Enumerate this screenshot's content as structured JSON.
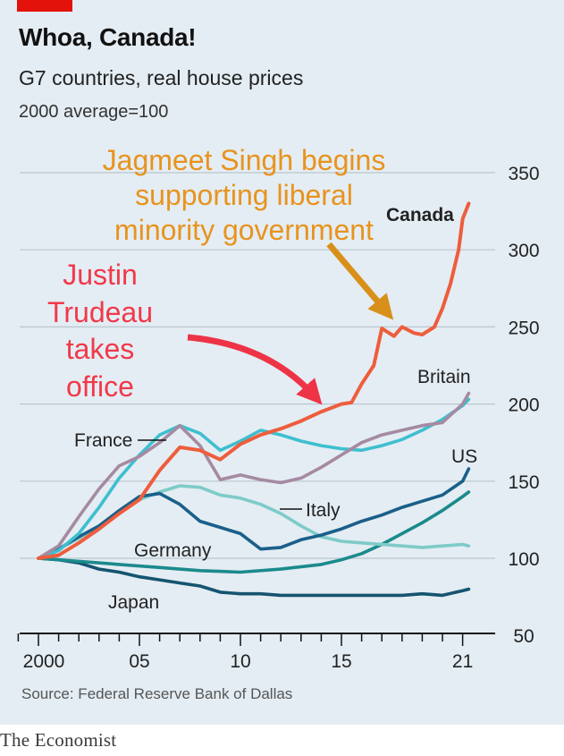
{
  "header": {
    "title": "Whoa, Canada!",
    "subtitle": "G7 countries, real house prices",
    "index_note": "2000 average=100"
  },
  "footer": {
    "source": "Source: Federal Reserve Bank of Dallas",
    "brand": "The Economist"
  },
  "colors": {
    "background": "#e4edf3",
    "red_tag": "#e3120b",
    "annotation_orange": "#e8931e",
    "annotation_red": "#f0394a",
    "arrow_orange": "#d8901a",
    "arrow_red": "#ee3347"
  },
  "annotations": {
    "singh": [
      "Jagmeet Singh begins",
      "supporting liberal",
      "minority government"
    ],
    "trudeau": [
      "Justin",
      "Trudeau",
      "takes",
      "office"
    ]
  },
  "chart_data": {
    "type": "line",
    "title": "Whoa, Canada!",
    "subtitle": "G7 countries, real house prices",
    "ylabel": "2000 average=100",
    "xlabel": "",
    "x_range": [
      1999.8,
      2021.6
    ],
    "ylim": [
      50,
      350
    ],
    "y_ticks": [
      50,
      100,
      150,
      200,
      250,
      300,
      350
    ],
    "x_ticks": [
      {
        "value": 2000,
        "label": "2000"
      },
      {
        "value": 2005,
        "label": "05"
      },
      {
        "value": 2010,
        "label": "10"
      },
      {
        "value": 2015,
        "label": "15"
      },
      {
        "value": 2021,
        "label": "21"
      }
    ],
    "grid": true,
    "series": [
      {
        "name": "Japan",
        "color": "#155470",
        "label": "Japan",
        "points": [
          [
            2000,
            100
          ],
          [
            2001,
            99
          ],
          [
            2002,
            97
          ],
          [
            2003,
            93
          ],
          [
            2004,
            91
          ],
          [
            2005,
            88
          ],
          [
            2006,
            86
          ],
          [
            2007,
            84
          ],
          [
            2008,
            82
          ],
          [
            2009,
            78
          ],
          [
            2010,
            77
          ],
          [
            2011,
            77
          ],
          [
            2012,
            76
          ],
          [
            2013,
            76
          ],
          [
            2014,
            76
          ],
          [
            2015,
            76
          ],
          [
            2016,
            76
          ],
          [
            2017,
            76
          ],
          [
            2018,
            76
          ],
          [
            2019,
            77
          ],
          [
            2020,
            76
          ],
          [
            2021,
            79
          ],
          [
            2021.3,
            80
          ]
        ]
      },
      {
        "name": "Germany",
        "color": "#1b8a8c",
        "label": "Germany",
        "points": [
          [
            2000,
            100
          ],
          [
            2002,
            98
          ],
          [
            2004,
            96
          ],
          [
            2006,
            94
          ],
          [
            2008,
            92
          ],
          [
            2010,
            91
          ],
          [
            2012,
            93
          ],
          [
            2014,
            96
          ],
          [
            2015,
            99
          ],
          [
            2016,
            103
          ],
          [
            2017,
            109
          ],
          [
            2018,
            116
          ],
          [
            2019,
            123
          ],
          [
            2020,
            131
          ],
          [
            2021,
            140
          ],
          [
            2021.3,
            143
          ]
        ]
      },
      {
        "name": "Italy",
        "color": "#7ecbc8",
        "label": "Italy",
        "points": [
          [
            2000,
            100
          ],
          [
            2001,
            106
          ],
          [
            2002,
            113
          ],
          [
            2003,
            121
          ],
          [
            2004,
            130
          ],
          [
            2005,
            138
          ],
          [
            2006,
            143
          ],
          [
            2007,
            147
          ],
          [
            2008,
            146
          ],
          [
            2009,
            141
          ],
          [
            2010,
            139
          ],
          [
            2011,
            135
          ],
          [
            2012,
            129
          ],
          [
            2013,
            121
          ],
          [
            2014,
            114
          ],
          [
            2015,
            111
          ],
          [
            2016,
            110
          ],
          [
            2017,
            109
          ],
          [
            2018,
            108
          ],
          [
            2019,
            107
          ],
          [
            2020,
            108
          ],
          [
            2021,
            109
          ],
          [
            2021.3,
            108
          ]
        ]
      },
      {
        "name": "US",
        "color": "#1a5f8a",
        "label": "US",
        "points": [
          [
            2000,
            100
          ],
          [
            2001,
            106
          ],
          [
            2002,
            114
          ],
          [
            2003,
            121
          ],
          [
            2004,
            131
          ],
          [
            2005,
            140
          ],
          [
            2006,
            142
          ],
          [
            2007,
            135
          ],
          [
            2008,
            124
          ],
          [
            2009,
            120
          ],
          [
            2010,
            116
          ],
          [
            2011,
            106
          ],
          [
            2012,
            107
          ],
          [
            2013,
            112
          ],
          [
            2014,
            115
          ],
          [
            2015,
            119
          ],
          [
            2016,
            124
          ],
          [
            2017,
            128
          ],
          [
            2018,
            133
          ],
          [
            2019,
            137
          ],
          [
            2020,
            141
          ],
          [
            2021,
            150
          ],
          [
            2021.3,
            158
          ]
        ]
      },
      {
        "name": "France",
        "color": "#3ebfcf",
        "label": "France",
        "points": [
          [
            2000,
            100
          ],
          [
            2001,
            105
          ],
          [
            2002,
            116
          ],
          [
            2003,
            133
          ],
          [
            2004,
            152
          ],
          [
            2005,
            167
          ],
          [
            2006,
            180
          ],
          [
            2007,
            186
          ],
          [
            2008,
            181
          ],
          [
            2009,
            170
          ],
          [
            2010,
            176
          ],
          [
            2011,
            183
          ],
          [
            2012,
            180
          ],
          [
            2013,
            176
          ],
          [
            2014,
            173
          ],
          [
            2015,
            171
          ],
          [
            2016,
            170
          ],
          [
            2017,
            173
          ],
          [
            2018,
            177
          ],
          [
            2019,
            183
          ],
          [
            2020,
            190
          ],
          [
            2021,
            199
          ],
          [
            2021.3,
            203
          ]
        ]
      },
      {
        "name": "Britain",
        "color": "#a58aa2",
        "label": "Britain",
        "points": [
          [
            2000,
            100
          ],
          [
            2001,
            108
          ],
          [
            2002,
            127
          ],
          [
            2003,
            145
          ],
          [
            2004,
            160
          ],
          [
            2005,
            166
          ],
          [
            2006,
            175
          ],
          [
            2007,
            186
          ],
          [
            2008,
            173
          ],
          [
            2009,
            151
          ],
          [
            2010,
            154
          ],
          [
            2011,
            151
          ],
          [
            2012,
            149
          ],
          [
            2013,
            152
          ],
          [
            2014,
            159
          ],
          [
            2015,
            167
          ],
          [
            2016,
            175
          ],
          [
            2017,
            180
          ],
          [
            2018,
            183
          ],
          [
            2019,
            186
          ],
          [
            2020,
            188
          ],
          [
            2021,
            200
          ],
          [
            2021.3,
            207
          ]
        ]
      },
      {
        "name": "Canada",
        "color": "#ee5d3c",
        "label": "Canada",
        "points": [
          [
            2000,
            100
          ],
          [
            2001,
            102
          ],
          [
            2002,
            110
          ],
          [
            2003,
            119
          ],
          [
            2004,
            129
          ],
          [
            2005,
            138
          ],
          [
            2006,
            157
          ],
          [
            2007,
            172
          ],
          [
            2008,
            170
          ],
          [
            2009,
            164
          ],
          [
            2010,
            174
          ],
          [
            2011,
            180
          ],
          [
            2012,
            184
          ],
          [
            2013,
            189
          ],
          [
            2014,
            195
          ],
          [
            2015,
            200
          ],
          [
            2015.5,
            201
          ],
          [
            2016,
            213
          ],
          [
            2016.6,
            225
          ],
          [
            2017,
            249
          ],
          [
            2017.6,
            244
          ],
          [
            2018,
            250
          ],
          [
            2018.6,
            246
          ],
          [
            2019,
            245
          ],
          [
            2019.6,
            250
          ],
          [
            2020,
            262
          ],
          [
            2020.4,
            278
          ],
          [
            2020.8,
            300
          ],
          [
            2021,
            320
          ],
          [
            2021.3,
            330
          ]
        ]
      }
    ]
  }
}
